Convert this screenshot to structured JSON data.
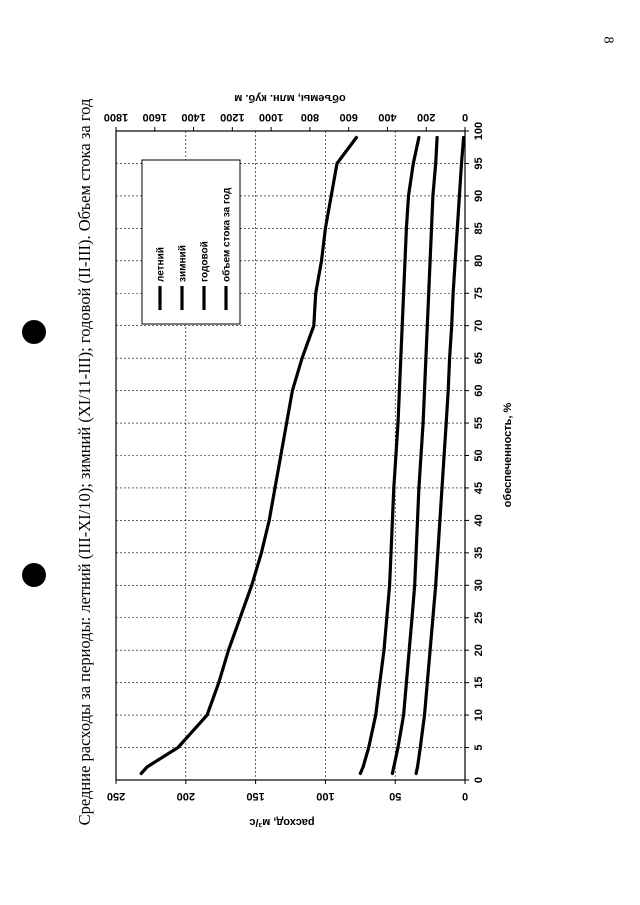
{
  "page": {
    "number": "8"
  },
  "chart_data": {
    "type": "line",
    "title": "Средние расходы за периоды: летний (III-XI/10); зимний (XI/11-III); годовой (II-III). Объем стока за год",
    "xlabel": "обеспеченность, %",
    "ylabel": "расход, м³/с",
    "y2label": "объемы, млн. куб. м",
    "xlim": [
      0,
      100
    ],
    "ylim": [
      0,
      250
    ],
    "y2lim": [
      0,
      1800
    ],
    "x_ticks": [
      "0",
      "5",
      "10",
      "15",
      "20",
      "25",
      "30",
      "35",
      "40",
      "45",
      "50",
      "55",
      "60",
      "65",
      "70",
      "75",
      "80",
      "85",
      "90",
      "95",
      "100"
    ],
    "y_ticks": [
      "0",
      "50",
      "100",
      "150",
      "200",
      "250"
    ],
    "y2_ticks": [
      "0",
      "200",
      "400",
      "600",
      "800",
      "1000",
      "1200",
      "1400",
      "1600",
      "1800"
    ],
    "grid": true,
    "legend_position": "top-right",
    "x": [
      1,
      2,
      5,
      10,
      15,
      20,
      25,
      30,
      35,
      40,
      45,
      50,
      55,
      60,
      65,
      70,
      75,
      80,
      85,
      90,
      95,
      99
    ],
    "series": [
      {
        "name": "летний",
        "axis": "left",
        "color": "#000000",
        "values": [
          35,
          34,
          32,
          29,
          27,
          25,
          23,
          21,
          19.5,
          18,
          16.5,
          15,
          13.5,
          12,
          11,
          9.5,
          8.5,
          7,
          5.5,
          4,
          2.5,
          1
        ]
      },
      {
        "name": "зимний",
        "axis": "left",
        "color": "#000000",
        "values": [
          52,
          51,
          48,
          44,
          42,
          40,
          38,
          36,
          35,
          34,
          33,
          31.5,
          30,
          29,
          28,
          27,
          26,
          25,
          24,
          23,
          21,
          20
        ]
      },
      {
        "name": "годовой",
        "axis": "left",
        "color": "#000000",
        "values": [
          75,
          73,
          69,
          64,
          61,
          58,
          56,
          54,
          53,
          52,
          51,
          49.5,
          48,
          47,
          46,
          45,
          44,
          43,
          42,
          40.5,
          37,
          33
        ]
      },
      {
        "name": "объем стока за год",
        "axis": "right",
        "color": "#000000",
        "values": [
          1670,
          1640,
          1480,
          1330,
          1270,
          1220,
          1160,
          1100,
          1050,
          1010,
          980,
          950,
          920,
          890,
          840,
          780,
          770,
          740,
          720,
          690,
          660,
          560
        ]
      }
    ]
  }
}
